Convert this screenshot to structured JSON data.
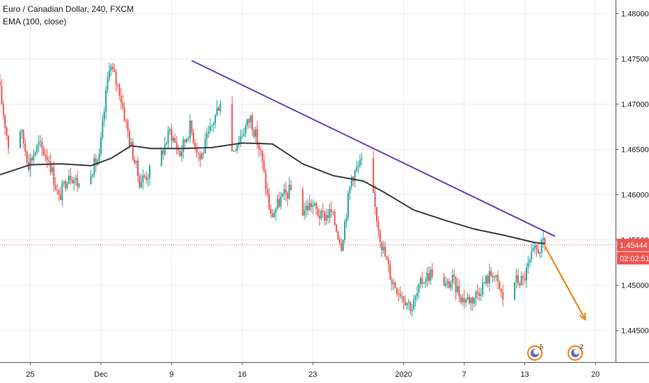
{
  "legend": {
    "title": "Euro / Canadian Dollar, 240, FXCM",
    "indicator": "EMA (100, close)"
  },
  "colors": {
    "up": "#26a69a",
    "down": "#ef5350",
    "ema": "#363a45",
    "trendline": "#673ab7",
    "arrow": "#f57c00",
    "price_tag": "#ef5350",
    "grid": "#e8ebef",
    "axis_text": "#131722"
  },
  "chart_data": {
    "type": "candlestick",
    "ylim": [
      1.4415,
      1.4815
    ],
    "y_ticks": [
      "1.48000",
      "1.47500",
      "1.47000",
      "1.46500",
      "1.46000",
      "1.45500",
      "1.45000",
      "1.44500"
    ],
    "y_tick_values": [
      1.48,
      1.475,
      1.47,
      1.465,
      1.46,
      1.455,
      1.45,
      1.445
    ],
    "x_range": [
      "2019-11-22",
      "2020-01-22"
    ],
    "x_ticks": [
      {
        "label": "25",
        "date": "2019-11-25"
      },
      {
        "label": "Dec",
        "date": "2019-12-02"
      },
      {
        "label": "9",
        "date": "2019-12-09"
      },
      {
        "label": "16",
        "date": "2019-12-16"
      },
      {
        "label": "23",
        "date": "2019-12-23"
      },
      {
        "label": "2020",
        "date": "2020-01-01"
      },
      {
        "label": "7",
        "date": "2020-01-07"
      },
      {
        "label": "13",
        "date": "2020-01-13"
      },
      {
        "label": "20",
        "date": "2020-01-20"
      }
    ],
    "current_price": "1.45444",
    "current_price_value": 1.45444,
    "countdown": "02:02:51",
    "price_path": [
      [
        "2019-11-22",
        1.4725
      ],
      [
        "2019-11-23",
        1.4655
      ],
      [
        "2019-11-24",
        1.468
      ],
      [
        "2019-11-25",
        1.4635
      ],
      [
        "2019-11-26",
        1.4655
      ],
      [
        "2019-11-27",
        1.464
      ],
      [
        "2019-11-28",
        1.4595
      ],
      [
        "2019-11-29",
        1.4625
      ],
      [
        "2019-11-30",
        1.461
      ],
      [
        "2019-12-01",
        1.4625
      ],
      [
        "2019-12-02",
        1.464
      ],
      [
        "2019-12-03",
        1.4745
      ],
      [
        "2019-12-04",
        1.4715
      ],
      [
        "2019-12-05",
        1.466
      ],
      [
        "2019-12-06",
        1.4615
      ],
      [
        "2019-12-07",
        1.4625
      ],
      [
        "2019-12-08",
        1.464
      ],
      [
        "2019-12-09",
        1.467
      ],
      [
        "2019-12-10",
        1.4645
      ],
      [
        "2019-12-11",
        1.4675
      ],
      [
        "2019-12-12",
        1.464
      ],
      [
        "2019-12-13",
        1.467
      ],
      [
        "2019-12-14",
        1.4705
      ],
      [
        "2019-12-15",
        1.4645
      ],
      [
        "2019-12-16",
        1.4665
      ],
      [
        "2019-12-17",
        1.4685
      ],
      [
        "2019-12-18",
        1.4645
      ],
      [
        "2019-12-19",
        1.4575
      ],
      [
        "2019-12-20",
        1.4595
      ],
      [
        "2019-12-21",
        1.4605
      ],
      [
        "2019-12-22",
        1.458
      ],
      [
        "2019-12-23",
        1.459
      ],
      [
        "2019-12-24",
        1.4575
      ],
      [
        "2019-12-25",
        1.458
      ],
      [
        "2019-12-26",
        1.4545
      ],
      [
        "2019-12-27",
        1.462
      ],
      [
        "2019-12-28",
        1.4635
      ],
      [
        "2019-12-29",
        1.4605
      ],
      [
        "2019-12-30",
        1.4545
      ],
      [
        "2019-12-31",
        1.4505
      ],
      [
        "2020-01-01",
        1.449
      ],
      [
        "2020-01-02",
        1.4475
      ],
      [
        "2020-01-03",
        1.4505
      ],
      [
        "2020-01-04",
        1.4515
      ],
      [
        "2020-01-05",
        1.4495
      ],
      [
        "2020-01-06",
        1.4505
      ],
      [
        "2020-01-07",
        1.4485
      ],
      [
        "2020-01-08",
        1.4485
      ],
      [
        "2020-01-09",
        1.45
      ],
      [
        "2020-01-10",
        1.4515
      ],
      [
        "2020-01-11",
        1.4485
      ],
      [
        "2020-01-12",
        1.4505
      ],
      [
        "2020-01-13",
        1.4505
      ],
      [
        "2020-01-14",
        1.4535
      ],
      [
        "2020-01-15",
        1.45444
      ]
    ],
    "ema_100": [
      [
        "2019-11-22",
        1.4622
      ],
      [
        "2019-11-25",
        1.4633
      ],
      [
        "2019-11-28",
        1.4634
      ],
      [
        "2019-12-01",
        1.4632
      ],
      [
        "2019-12-03",
        1.464
      ],
      [
        "2019-12-05",
        1.4654
      ],
      [
        "2019-12-07",
        1.4651
      ],
      [
        "2019-12-10",
        1.4651
      ],
      [
        "2019-12-13",
        1.4652
      ],
      [
        "2019-12-16",
        1.4657
      ],
      [
        "2019-12-19",
        1.4656
      ],
      [
        "2019-12-22",
        1.4634
      ],
      [
        "2019-12-25",
        1.4621
      ],
      [
        "2019-12-28",
        1.4615
      ],
      [
        "2019-12-30",
        1.4603
      ],
      [
        "2020-01-02",
        1.4583
      ],
      [
        "2020-01-05",
        1.4572
      ],
      [
        "2020-01-08",
        1.4562
      ],
      [
        "2020-01-11",
        1.4555
      ],
      [
        "2020-01-14",
        1.4547
      ],
      [
        "2020-01-15",
        1.4546
      ]
    ],
    "trendline": [
      [
        "2019-12-11",
        1.4748
      ],
      [
        "2020-01-16",
        1.4554
      ]
    ],
    "projection_arrow": [
      [
        "2020-01-15",
        1.4543
      ],
      [
        "2020-01-19",
        1.4462
      ]
    ],
    "event_markers": [
      {
        "date": "2020-01-14",
        "count": "5"
      },
      {
        "date": "2020-01-18",
        "count": "2"
      }
    ]
  }
}
